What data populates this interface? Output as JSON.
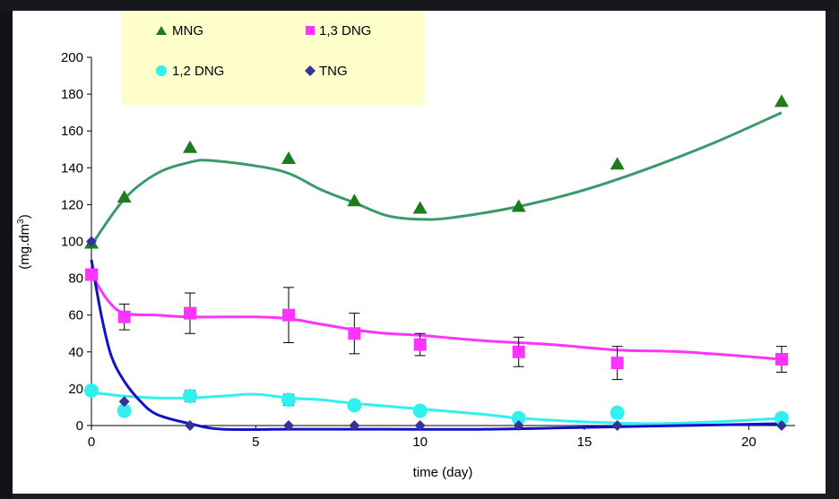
{
  "chart_data": {
    "type": "line",
    "xlabel": "time (day)",
    "ylabel_main": "(mg.dm",
    "ylabel_sup": "3",
    "ylabel_close": ")",
    "xlim": [
      0,
      21
    ],
    "ylim": [
      0,
      200
    ],
    "x_ticks": [
      0,
      5,
      10,
      15,
      20
    ],
    "y_ticks": [
      0,
      20,
      40,
      60,
      80,
      100,
      120,
      140,
      160,
      180,
      200
    ],
    "grid": false,
    "legend_position": "top-left",
    "series": [
      {
        "name": "MNG",
        "color": "#1e7b1e",
        "line_color": "#3a9a6a",
        "marker": "triangle",
        "x": [
          0,
          1,
          3,
          6,
          8,
          10,
          13,
          16,
          21
        ],
        "y": [
          99,
          124,
          151,
          145,
          122,
          118,
          119,
          142,
          176
        ],
        "fit": [
          [
            0,
            98
          ],
          [
            1,
            123
          ],
          [
            2,
            137
          ],
          [
            3,
            143
          ],
          [
            3.6,
            144
          ],
          [
            5,
            141
          ],
          [
            6,
            137
          ],
          [
            7,
            128
          ],
          [
            8,
            121
          ],
          [
            9,
            114
          ],
          [
            10,
            112
          ],
          [
            11,
            113
          ],
          [
            13,
            119
          ],
          [
            15,
            128
          ],
          [
            17,
            140
          ],
          [
            19,
            154
          ],
          [
            21,
            170
          ]
        ]
      },
      {
        "name": "1,3 DNG",
        "color": "#ff33ff",
        "line_color": "#ff33ff",
        "marker": "square",
        "x": [
          0,
          1,
          3,
          6,
          8,
          10,
          13,
          16,
          21
        ],
        "y": [
          82,
          59,
          61,
          60,
          50,
          44,
          40,
          34,
          36
        ],
        "err": [
          0,
          7,
          11,
          15,
          11,
          6,
          8,
          9,
          7
        ],
        "fit": [
          [
            0,
            82
          ],
          [
            0.5,
            68
          ],
          [
            1,
            61
          ],
          [
            2,
            60
          ],
          [
            3,
            59
          ],
          [
            5,
            59
          ],
          [
            6,
            58
          ],
          [
            7,
            55
          ],
          [
            8,
            52
          ],
          [
            9,
            50
          ],
          [
            10,
            49
          ],
          [
            12,
            46
          ],
          [
            14,
            44
          ],
          [
            16,
            41
          ],
          [
            18,
            40
          ],
          [
            21,
            36
          ]
        ]
      },
      {
        "name": "1,2 DNG",
        "color": "#33f0f0",
        "line_color": "#33f0f0",
        "marker": "circle",
        "x": [
          0,
          1,
          3,
          6,
          8,
          10,
          13,
          16,
          21
        ],
        "y": [
          19,
          8,
          16,
          14,
          11,
          8,
          4,
          7,
          4
        ],
        "err": [
          0,
          0,
          3,
          3,
          2,
          2,
          2,
          2,
          1
        ],
        "fit": [
          [
            0,
            18
          ],
          [
            1,
            16
          ],
          [
            2,
            15
          ],
          [
            3,
            15
          ],
          [
            4,
            16
          ],
          [
            5,
            17
          ],
          [
            6,
            15
          ],
          [
            7,
            14
          ],
          [
            8,
            12
          ],
          [
            10,
            9
          ],
          [
            12,
            6
          ],
          [
            13,
            4
          ],
          [
            15,
            2
          ],
          [
            17,
            1
          ],
          [
            19,
            2
          ],
          [
            21,
            4
          ]
        ]
      },
      {
        "name": "TNG",
        "color": "#333399",
        "line_color": "#1111cc",
        "marker": "diamond",
        "x": [
          0,
          1,
          3,
          6,
          8,
          10,
          13,
          16,
          21
        ],
        "y": [
          100,
          13,
          0,
          0,
          0,
          0,
          0,
          0,
          0
        ],
        "fit": [
          [
            0,
            90
          ],
          [
            0.3,
            60
          ],
          [
            0.6,
            38
          ],
          [
            1,
            24
          ],
          [
            1.5,
            13
          ],
          [
            2,
            6
          ],
          [
            3,
            1
          ],
          [
            4,
            -2
          ],
          [
            6,
            -2
          ],
          [
            9,
            -2
          ],
          [
            12,
            -2
          ],
          [
            15,
            -1
          ],
          [
            18,
            0
          ],
          [
            21,
            1
          ]
        ]
      }
    ]
  }
}
